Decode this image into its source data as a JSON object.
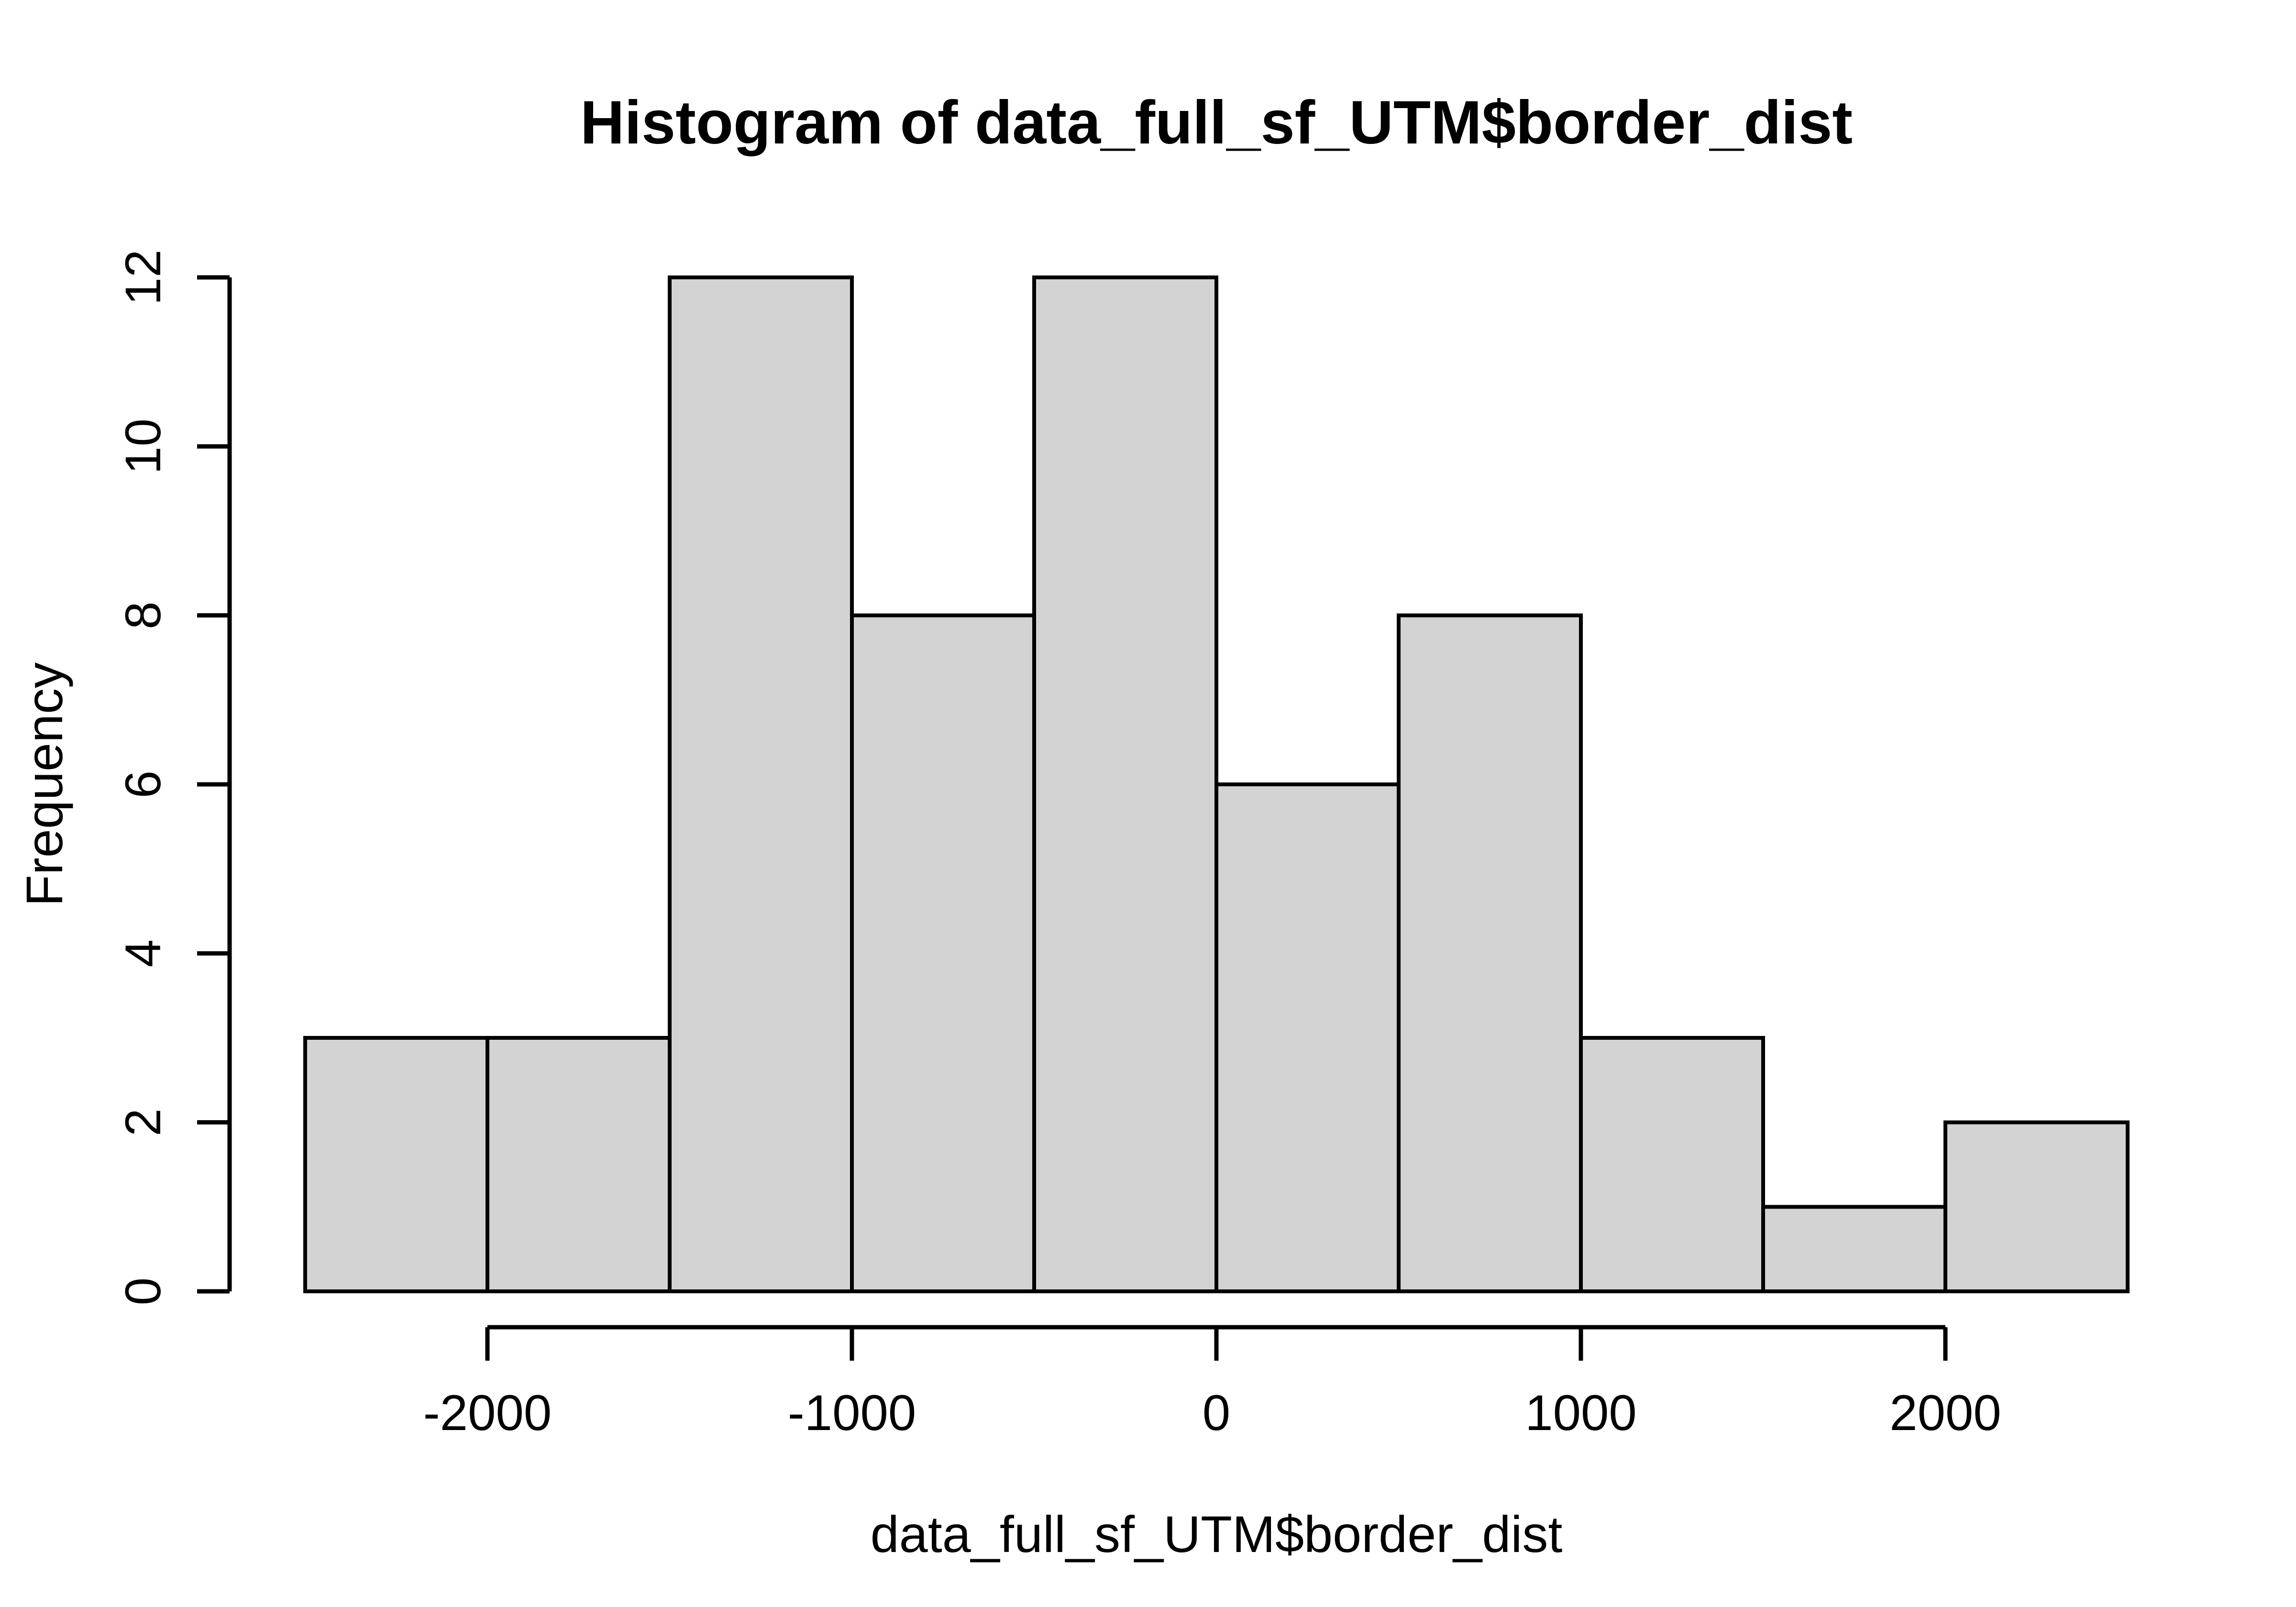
{
  "chart_data": {
    "type": "bar",
    "variant": "histogram",
    "title": "Histogram of data_full_sf_UTM$border_dist",
    "xlabel": "data_full_sf_UTM$border_dist",
    "ylabel": "Frequency",
    "bin_edges": [
      -2500,
      -2000,
      -1500,
      -1000,
      -500,
      0,
      500,
      1000,
      1500,
      2000,
      2500
    ],
    "counts": [
      3,
      3,
      12,
      8,
      12,
      6,
      8,
      3,
      1,
      2
    ],
    "xlim": [
      -2500,
      2500
    ],
    "ylim": [
      0,
      12
    ],
    "x_tick_values": [
      -2000,
      -1000,
      0,
      1000,
      2000
    ],
    "x_tick_labels": [
      "-2000",
      "-1000",
      "0",
      "1000",
      "2000"
    ],
    "y_tick_values": [
      0,
      2,
      4,
      6,
      8,
      10,
      12
    ],
    "y_tick_labels": [
      "0",
      "2",
      "4",
      "6",
      "8",
      "10",
      "12"
    ],
    "grid": false,
    "legend": "none",
    "colors": {
      "bar_fill": "#d3d3d3",
      "bar_border": "#000000",
      "axis": "#000000",
      "text": "#000000",
      "background": "#ffffff"
    }
  }
}
